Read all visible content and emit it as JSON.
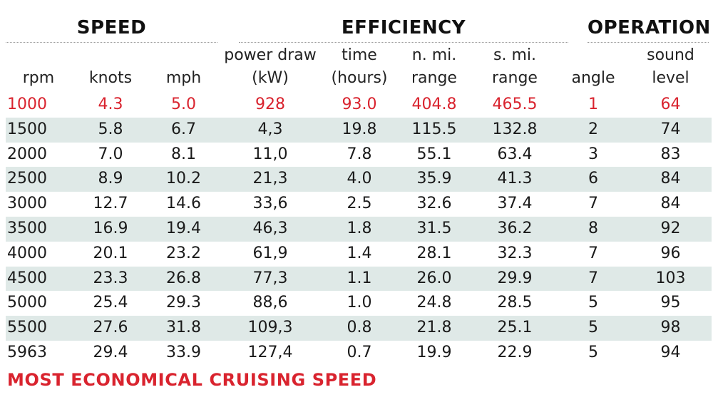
{
  "groups": {
    "speed": "SPEED",
    "efficiency": "EFFICIENCY",
    "operation": "OPERATION"
  },
  "columns": [
    [
      "rpm"
    ],
    [
      "knots"
    ],
    [
      "mph"
    ],
    [
      "power draw",
      "(kW)"
    ],
    [
      "time",
      "(hours)"
    ],
    [
      "n. mi.",
      "range"
    ],
    [
      "s. mi.",
      "range"
    ],
    [
      "angle"
    ],
    [
      "sound",
      "level"
    ]
  ],
  "rows": [
    [
      "1000",
      "4.3",
      "5.0",
      "928",
      "93.0",
      "404.8",
      "465.5",
      "1",
      "64"
    ],
    [
      "1500",
      "5.8",
      "6.7",
      "4,3",
      "19.8",
      "115.5",
      "132.8",
      "2",
      "74"
    ],
    [
      "2000",
      "7.0",
      "8.1",
      "11,0",
      "7.8",
      "55.1",
      "63.4",
      "3",
      "83"
    ],
    [
      "2500",
      "8.9",
      "10.2",
      "21,3",
      "4.0",
      "35.9",
      "41.3",
      "6",
      "84"
    ],
    [
      "3000",
      "12.7",
      "14.6",
      "33,6",
      "2.5",
      "32.6",
      "37.4",
      "7",
      "84"
    ],
    [
      "3500",
      "16.9",
      "19.4",
      "46,3",
      "1.8",
      "31.5",
      "36.2",
      "8",
      "92"
    ],
    [
      "4000",
      "20.1",
      "23.2",
      "61,9",
      "1.4",
      "28.1",
      "32.3",
      "7",
      "96"
    ],
    [
      "4500",
      "23.3",
      "26.8",
      "77,3",
      "1.1",
      "26.0",
      "29.9",
      "7",
      "103"
    ],
    [
      "5000",
      "25.4",
      "29.3",
      "88,6",
      "1.0",
      "24.8",
      "28.5",
      "5",
      "95"
    ],
    [
      "5500",
      "27.6",
      "31.8",
      "109,3",
      "0.8",
      "21.8",
      "25.1",
      "5",
      "98"
    ],
    [
      "5963",
      "29.4",
      "33.9",
      "127,4",
      "0.7",
      "19.9",
      "22.9",
      "5",
      "94"
    ]
  ],
  "highlight_row": 0,
  "highlight_color": "#d9232e",
  "shade_color": "#dfe9e7",
  "footnote": "MOST ECONOMICAL CRUISING SPEED"
}
